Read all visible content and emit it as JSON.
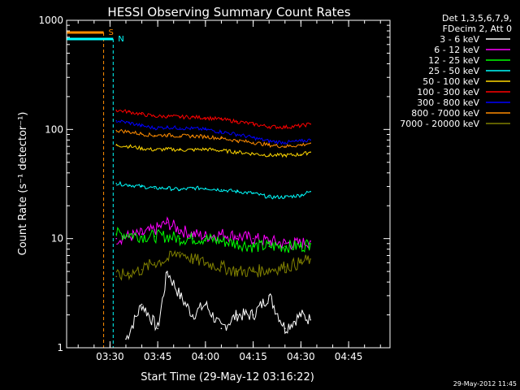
{
  "chart_data": {
    "type": "line",
    "title": "HESSI Observing Summary Count Rates",
    "xlabel": "Start Time (29-May-12 03:16:22)",
    "ylabel": "Count Rate (s⁻¹ detector⁻¹)",
    "y_scale": "log",
    "ylim": [
      1,
      1000
    ],
    "xlim": [
      "03:16:22",
      "04:58:00"
    ],
    "yticks": [
      1,
      10,
      100,
      1000
    ],
    "ytick_labels": [
      "1",
      "10",
      "100",
      "1000"
    ],
    "xticks": [
      "03:30",
      "03:45",
      "04:00",
      "04:15",
      "04:30",
      "04:45"
    ],
    "legend_header": [
      "Det 1,3,5,6,7,9,",
      "FDecim 2, Att 0"
    ],
    "legend_position": "top-right (outside plot)",
    "footer_date": "29-May-2012 11:45",
    "series": [
      {
        "name": "3 - 6 keV",
        "color": "#ffffff",
        "x": [
          "03:35",
          "03:40",
          "03:45",
          "03:48",
          "03:52",
          "03:56",
          "04:00",
          "04:05",
          "04:10",
          "04:15",
          "04:20",
          "04:25",
          "04:30",
          "04:33"
        ],
        "y": [
          1.2,
          2.5,
          1.5,
          5,
          3,
          2,
          2.5,
          1.5,
          2,
          2,
          3,
          1.5,
          2,
          1.8
        ]
      },
      {
        "name": "6 - 12 keV",
        "color": "#ff00ff",
        "x": [
          "03:32",
          "03:36",
          "03:40",
          "03:44",
          "03:48",
          "03:52",
          "03:56",
          "04:00",
          "04:05",
          "04:10",
          "04:15",
          "04:20",
          "04:25",
          "04:30",
          "04:33"
        ],
        "y": [
          10,
          10.5,
          11,
          12,
          14,
          12,
          11,
          10.5,
          11,
          10.5,
          10,
          9.5,
          9,
          9,
          9.5
        ]
      },
      {
        "name": "12 - 25 keV",
        "color": "#00ff00",
        "x": [
          "03:32",
          "03:36",
          "03:40",
          "03:44",
          "03:48",
          "03:52",
          "03:56",
          "04:00",
          "04:05",
          "04:10",
          "04:15",
          "04:20",
          "04:25",
          "04:30",
          "04:33"
        ],
        "y": [
          11,
          11,
          10.5,
          10.5,
          10.5,
          10,
          10,
          10,
          9.5,
          9,
          8.5,
          8.5,
          8.5,
          8.5,
          9
        ]
      },
      {
        "name": "25 - 50 keV",
        "color": "#00ffff",
        "x": [
          "03:32",
          "03:36",
          "03:40",
          "03:44",
          "03:48",
          "03:52",
          "03:56",
          "04:00",
          "04:05",
          "04:10",
          "04:15",
          "04:20",
          "04:25",
          "04:30",
          "04:33"
        ],
        "y": [
          32,
          31,
          30,
          29,
          29,
          28,
          29,
          29,
          28,
          27,
          26,
          24,
          24,
          25,
          27
        ]
      },
      {
        "name": "50 - 100 keV",
        "color": "#ffd700",
        "x": [
          "03:32",
          "03:36",
          "03:40",
          "03:44",
          "03:48",
          "03:52",
          "03:56",
          "04:00",
          "04:05",
          "04:10",
          "04:15",
          "04:20",
          "04:25",
          "04:30",
          "04:33"
        ],
        "y": [
          72,
          70,
          67,
          65,
          66,
          65,
          65,
          66,
          64,
          62,
          60,
          58,
          58,
          59,
          62
        ]
      },
      {
        "name": "100 - 300 keV",
        "color": "#ff0000",
        "x": [
          "03:32",
          "03:36",
          "03:40",
          "03:44",
          "03:48",
          "03:52",
          "03:56",
          "04:00",
          "04:05",
          "04:10",
          "04:15",
          "04:20",
          "04:25",
          "04:30",
          "04:33"
        ],
        "y": [
          150,
          145,
          138,
          132,
          132,
          130,
          130,
          128,
          124,
          118,
          112,
          106,
          105,
          108,
          112
        ]
      },
      {
        "name": "300 - 800 keV",
        "color": "#0000ff",
        "x": [
          "03:32",
          "03:36",
          "03:40",
          "03:44",
          "03:48",
          "03:52",
          "03:56",
          "04:00",
          "04:05",
          "04:10",
          "04:15",
          "04:20",
          "04:25",
          "04:30",
          "04:33"
        ],
        "y": [
          120,
          115,
          108,
          103,
          105,
          103,
          102,
          100,
          95,
          90,
          84,
          78,
          76,
          78,
          80
        ]
      },
      {
        "name": "800 - 7000 keV",
        "color": "#ff8c00",
        "x": [
          "03:32",
          "03:36",
          "03:40",
          "03:44",
          "03:48",
          "03:52",
          "03:56",
          "04:00",
          "04:05",
          "04:10",
          "04:15",
          "04:20",
          "04:25",
          "04:30",
          "04:33"
        ],
        "y": [
          98,
          95,
          91,
          88,
          89,
          87,
          87,
          86,
          83,
          79,
          76,
          72,
          70,
          72,
          75
        ]
      },
      {
        "name": "7000 - 20000 keV",
        "color": "#808000",
        "x": [
          "03:32",
          "03:36",
          "03:40",
          "03:44",
          "03:48",
          "03:52",
          "03:56",
          "04:00",
          "04:05",
          "04:10",
          "04:15",
          "04:20",
          "04:25",
          "04:30",
          "04:33"
        ],
        "y": [
          4.5,
          4.8,
          5.2,
          6,
          6.5,
          7.5,
          6.5,
          6,
          5.5,
          5,
          5,
          5.2,
          5.5,
          6,
          6.5
        ]
      }
    ],
    "annotations": [
      {
        "label": "S",
        "color": "#ff8c00",
        "x": "03:28"
      },
      {
        "label": "N",
        "color": "#00ffff",
        "x": "03:31"
      }
    ]
  }
}
